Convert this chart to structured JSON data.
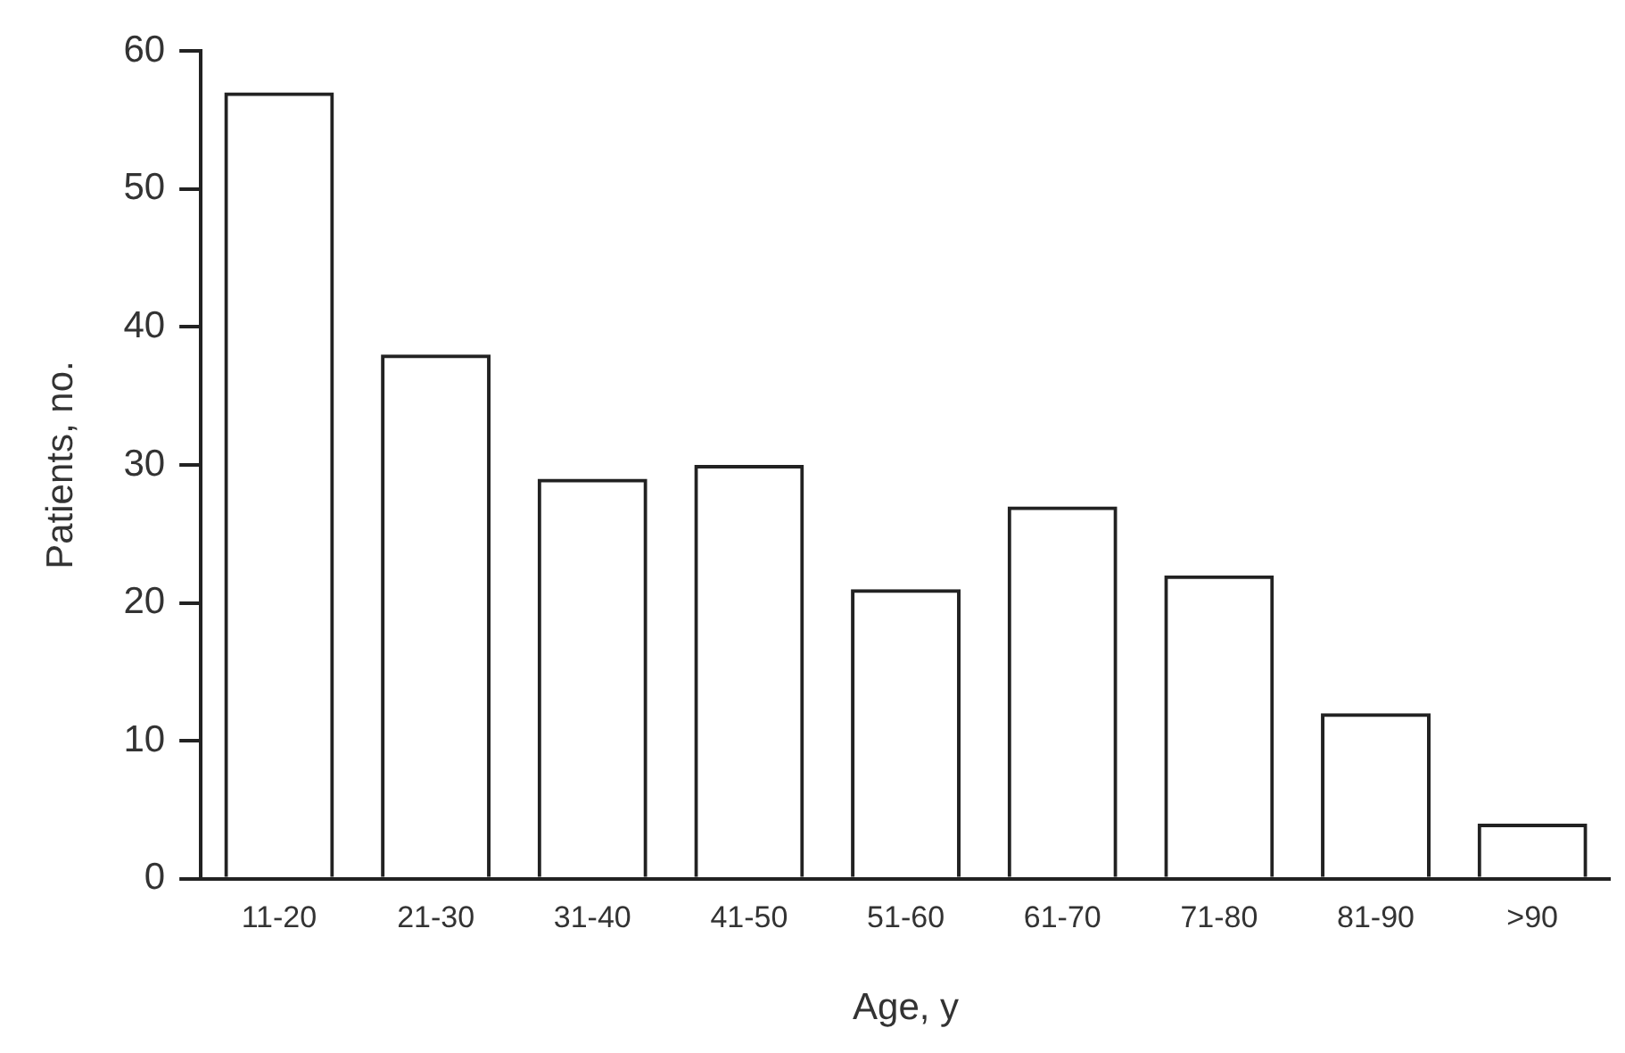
{
  "chart_data": {
    "type": "bar",
    "xlabel": "Age, y",
    "ylabel": "Patients, no.",
    "categories": [
      "11-20",
      "21-30",
      "31-40",
      "41-50",
      "51-60",
      "61-70",
      "71-80",
      "81-90",
      ">90"
    ],
    "values": [
      57,
      38,
      29,
      30,
      21,
      27,
      22,
      12,
      4
    ],
    "color": "#222222",
    "ylim": [
      0,
      60
    ],
    "yticks": [
      0,
      10,
      20,
      30,
      40,
      50,
      60
    ],
    "grid": false,
    "legend": false
  }
}
